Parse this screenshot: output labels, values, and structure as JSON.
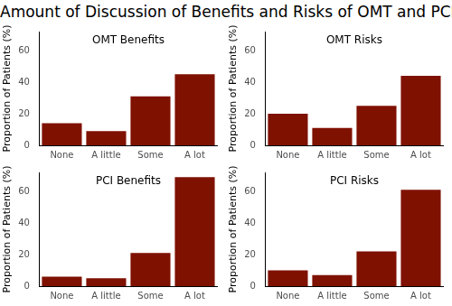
{
  "title": "Amount of Discussion of Benefits and Risks of OMT and PCI",
  "chart_data": [
    {
      "type": "bar",
      "title": "OMT Benefits",
      "categories": [
        "None",
        "A little",
        "Some",
        "A lot"
      ],
      "values": [
        14,
        9,
        31,
        45
      ],
      "color": "#7f1100",
      "ylim": [
        0,
        72
      ],
      "yticks": [
        0,
        20,
        40,
        60
      ],
      "y_label": "Proportion of Patients (%)",
      "grid": false
    },
    {
      "type": "bar",
      "title": "OMT Risks",
      "categories": [
        "None",
        "A little",
        "Some",
        "A lot"
      ],
      "values": [
        20,
        11,
        25,
        44
      ],
      "color": "#7f1100",
      "ylim": [
        0,
        72
      ],
      "yticks": [
        0,
        20,
        40,
        60
      ],
      "y_label": "Proportion of Patients (%)",
      "grid": false
    },
    {
      "type": "bar",
      "title": "PCI Benefits",
      "categories": [
        "None",
        "A little",
        "Some",
        "A lot"
      ],
      "values": [
        6,
        5,
        21,
        69
      ],
      "color": "#7f1100",
      "ylim": [
        0,
        72
      ],
      "yticks": [
        0,
        20,
        40,
        60
      ],
      "y_label": "Proportion of Patients (%)",
      "grid": false
    },
    {
      "type": "bar",
      "title": "PCI Risks",
      "categories": [
        "None",
        "A little",
        "Some",
        "A lot"
      ],
      "values": [
        10,
        7,
        22,
        61
      ],
      "color": "#7f1100",
      "ylim": [
        0,
        72
      ],
      "yticks": [
        0,
        20,
        40,
        60
      ],
      "y_label": "Proportion of Patients (%)",
      "grid": false
    }
  ]
}
